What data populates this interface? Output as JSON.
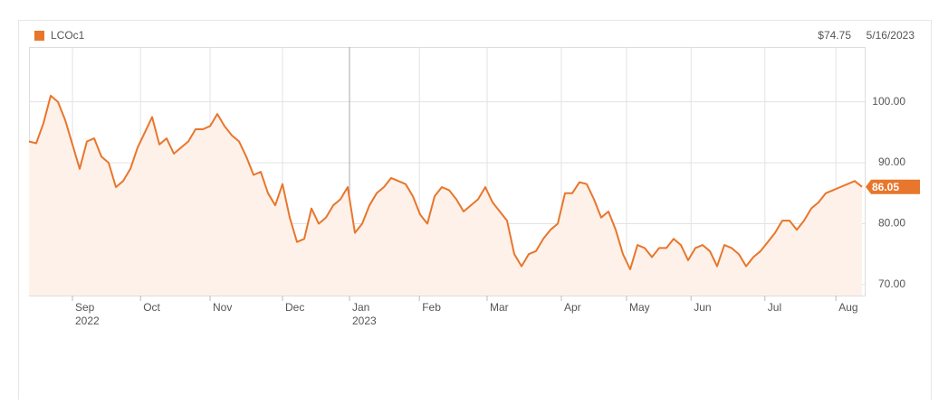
{
  "chart_data": {
    "type": "line",
    "legend": "LCOc1",
    "hover_price": "$74.75",
    "hover_date": "5/16/2023",
    "xlim": [
      0,
      115
    ],
    "ylim": [
      68.2,
      109
    ],
    "xticks": [
      {
        "value": 6,
        "label": "Sep"
      },
      {
        "value": 15.4,
        "label": "Oct"
      },
      {
        "value": 25,
        "label": "Nov"
      },
      {
        "value": 35,
        "label": "Dec"
      },
      {
        "value": 44.25,
        "label": "Jan"
      },
      {
        "value": 53.9,
        "label": "Feb"
      },
      {
        "value": 63.25,
        "label": "Mar"
      },
      {
        "value": 73.5,
        "label": "Apr"
      },
      {
        "value": 82.5,
        "label": "May"
      },
      {
        "value": 91.4,
        "label": "Jun"
      },
      {
        "value": 101.6,
        "label": "Jul"
      },
      {
        "value": 111.4,
        "label": "Aug"
      }
    ],
    "year_labels": [
      {
        "value": 6,
        "label": "2022"
      },
      {
        "value": 44.25,
        "label": "2023"
      }
    ],
    "yticks": [
      {
        "value": 70,
        "label": "70.00"
      },
      {
        "value": 80,
        "label": "80.00"
      },
      {
        "value": 90,
        "label": "90.00"
      },
      {
        "value": 100,
        "label": "100.00"
      }
    ],
    "grid": true,
    "series": [
      {
        "name": "LCOc1",
        "color": "#e8762c",
        "fill": "#fdf1e9",
        "values": [
          93.5,
          93.2,
          96.5,
          101,
          100,
          97,
          93,
          89,
          93.5,
          94,
          91,
          90,
          86,
          87,
          89,
          92.5,
          95,
          97.5,
          93,
          94,
          91.5,
          92.5,
          93.5,
          95.5,
          95.5,
          96,
          98,
          96,
          94.5,
          93.5,
          91,
          88,
          88.5,
          85,
          83,
          86.5,
          81,
          77,
          77.5,
          82.5,
          80,
          81,
          83,
          84,
          86,
          78.5,
          80,
          83,
          85,
          86,
          87.5,
          87,
          86.5,
          84.5,
          81.5,
          80,
          84.5,
          86,
          85.5,
          84,
          82,
          83,
          84,
          86,
          83.5,
          82,
          80.5,
          75,
          73,
          75,
          75.5,
          77.5,
          79,
          80,
          85,
          85,
          86.8,
          86.5,
          84,
          81,
          82,
          79,
          75,
          72.5,
          76.5,
          76,
          74.5,
          76,
          76,
          77.5,
          76.5,
          74,
          76,
          76.5,
          75.5,
          73,
          76.5,
          76,
          75,
          73,
          74.5,
          75.5,
          77,
          78.5,
          80.5,
          80.5,
          79,
          80.5,
          82.5,
          83.5,
          85,
          85.5,
          86,
          86.5,
          87,
          86.05
        ]
      }
    ]
  }
}
